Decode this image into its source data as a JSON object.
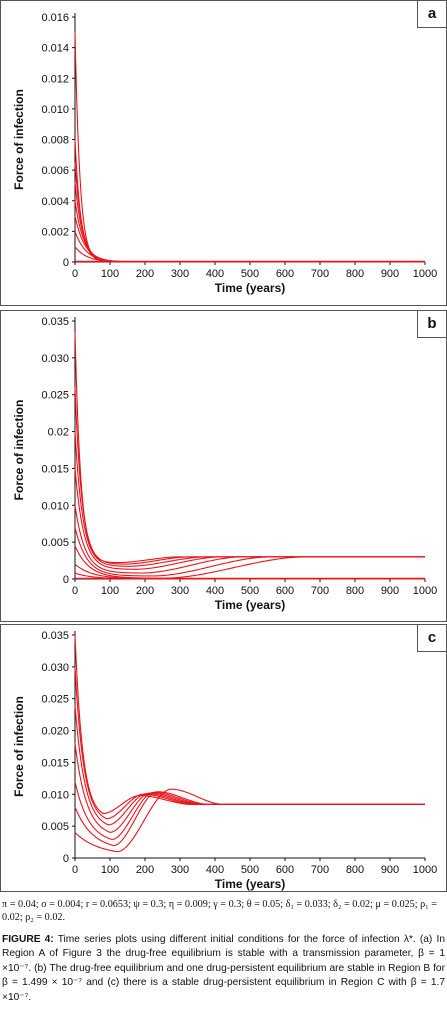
{
  "chart_data": [
    {
      "type": "line",
      "panel": "a",
      "xlabel": "Time (years)",
      "ylabel": "Force of infection",
      "xlim": [
        0,
        1000
      ],
      "ylim": [
        0,
        0.016
      ],
      "xticks": [
        "0",
        "100",
        "200",
        "300",
        "400",
        "500",
        "600",
        "700",
        "800",
        "900",
        "1000"
      ],
      "yticks": [
        "0",
        "0.002",
        "0.004",
        "0.006",
        "0.008",
        "0.010",
        "0.012",
        "0.014",
        "0.016"
      ],
      "equilibrium": 0,
      "series": [
        {
          "y0": 0.015,
          "rate": 0.07
        },
        {
          "y0": 0.008,
          "rate": 0.06
        },
        {
          "y0": 0.0065,
          "rate": 0.05
        },
        {
          "y0": 0.0052,
          "rate": 0.045
        },
        {
          "y0": 0.004,
          "rate": 0.04
        },
        {
          "y0": 0.003,
          "rate": 0.035
        },
        {
          "y0": 0.002,
          "rate": 0.032
        },
        {
          "y0": 0.001,
          "rate": 0.03
        }
      ]
    },
    {
      "type": "line",
      "panel": "b",
      "xlabel": "Time (years)",
      "ylabel": "Force of infection",
      "xlim": [
        0,
        1000
      ],
      "ylim": [
        0,
        0.035
      ],
      "xticks": [
        "0",
        "100",
        "200",
        "300",
        "400",
        "500",
        "600",
        "700",
        "800",
        "900",
        "1000"
      ],
      "yticks": [
        "0",
        "0.005",
        "0.010",
        "0.015",
        "0.02",
        "0.025",
        "0.030",
        "0.035"
      ],
      "equilibrium": 0.003,
      "series": [
        {
          "y0": 0.0335,
          "rate": 0.06,
          "dip": 0.0022,
          "t_min": 120,
          "t_eq": 300
        },
        {
          "y0": 0.026,
          "rate": 0.05,
          "dip": 0.002,
          "t_min": 140,
          "t_eq": 330
        },
        {
          "y0": 0.02,
          "rate": 0.045,
          "dip": 0.0017,
          "t_min": 150,
          "t_eq": 380
        },
        {
          "y0": 0.015,
          "rate": 0.04,
          "dip": 0.0013,
          "t_min": 170,
          "t_eq": 420
        },
        {
          "y0": 0.01,
          "rate": 0.035,
          "dip": 0.0008,
          "t_min": 190,
          "t_eq": 480
        },
        {
          "y0": 0.007,
          "rate": 0.03,
          "dip": 0.0004,
          "t_min": 220,
          "t_eq": 560
        },
        {
          "y0": 0.0045,
          "rate": 0.025,
          "dip": 0.0001,
          "t_min": 250,
          "t_eq": 660
        },
        {
          "y0": 0.002,
          "rate": 0.02,
          "dip": 0.0,
          "t_min": 0,
          "t_eq": 0,
          "to_zero": true
        },
        {
          "y0": 0.0008,
          "rate": 0.02,
          "dip": 0.0,
          "t_min": 0,
          "t_eq": 0,
          "to_zero": true
        }
      ]
    },
    {
      "type": "line",
      "panel": "c",
      "xlabel": "Time (years)",
      "ylabel": "Force of infection",
      "xlim": [
        0,
        1000
      ],
      "ylim": [
        0,
        0.035
      ],
      "xticks": [
        "0",
        "100",
        "200",
        "300",
        "400",
        "500",
        "600",
        "700",
        "800",
        "900",
        "1000"
      ],
      "yticks": [
        "0",
        "0.005",
        "0.010",
        "0.015",
        "0.020",
        "0.025",
        "0.030",
        "0.035"
      ],
      "equilibrium": 0.0084,
      "series": [
        {
          "y0": 0.035,
          "rate": 0.045,
          "min": 0.0062,
          "t_min": 80,
          "peak": 0.0098,
          "t_peak": 185
        },
        {
          "y0": 0.03,
          "rate": 0.04,
          "min": 0.0055,
          "t_min": 90,
          "peak": 0.01,
          "t_peak": 195
        },
        {
          "y0": 0.024,
          "rate": 0.035,
          "min": 0.0045,
          "t_min": 95,
          "peak": 0.0101,
          "t_peak": 205
        },
        {
          "y0": 0.018,
          "rate": 0.03,
          "min": 0.0033,
          "t_min": 100,
          "peak": 0.0102,
          "t_peak": 215
        },
        {
          "y0": 0.012,
          "rate": 0.025,
          "min": 0.0022,
          "t_min": 105,
          "peak": 0.0103,
          "t_peak": 225
        },
        {
          "y0": 0.008,
          "rate": 0.02,
          "min": 0.0012,
          "t_min": 110,
          "peak": 0.0104,
          "t_peak": 235
        },
        {
          "y0": 0.004,
          "rate": 0.015,
          "min": 0.0004,
          "t_min": 120,
          "peak": 0.0108,
          "t_peak": 275
        }
      ]
    }
  ],
  "panels": {
    "a": {
      "letter": "a"
    },
    "b": {
      "letter": "b"
    },
    "c": {
      "letter": "c"
    }
  },
  "line_color": "#e8141b",
  "params_text": "π = 0.04; σ = 0.004; r = 0.0653; ψ = 0.3; η = 0.009; γ = 0.3; θ = 0.05; δ₁ = 0.033; δ₂ = 0.02; μ = 0.025; ρ₁ = 0.02; ρ₂ = 0.02.",
  "caption_label": "FIGURE 4:",
  "caption_text": " Time series plots using different initial conditions for the force of infection λ*. (a) In Region A of Figure 3 the drug-free equilibrium is stable with a transmission parameter, β = 1 ×10⁻⁷. (b) The drug-free equilibrium and one drug-persistent equilibrium are stable in Region B for β = 1.499 × 10⁻⁷ and (c) there is a stable drug-persistent equilibrium in Region C with β = 1.7 ×10⁻⁷."
}
